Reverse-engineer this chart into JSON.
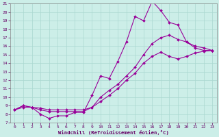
{
  "xlabel": "Windchill (Refroidissement éolien,°C)",
  "xlim": [
    -0.5,
    23.5
  ],
  "ylim": [
    7,
    21
  ],
  "xticks": [
    0,
    1,
    2,
    3,
    4,
    5,
    6,
    7,
    8,
    9,
    10,
    11,
    12,
    13,
    14,
    15,
    16,
    17,
    18,
    19,
    20,
    21,
    22,
    23
  ],
  "yticks": [
    7,
    8,
    9,
    10,
    11,
    12,
    13,
    14,
    15,
    16,
    17,
    18,
    19,
    20,
    21
  ],
  "bg_color": "#cceee8",
  "grid_color": "#aad8d0",
  "line_color": "#990099",
  "line1_x": [
    0,
    1,
    2,
    3,
    4,
    5,
    6,
    7,
    8,
    9,
    10,
    11,
    12,
    13,
    14,
    15,
    16,
    17,
    18,
    19,
    20,
    21,
    22,
    23
  ],
  "line1_y": [
    8.5,
    9.0,
    8.8,
    8.0,
    7.5,
    7.8,
    7.8,
    8.2,
    8.2,
    10.2,
    12.5,
    12.2,
    14.2,
    16.5,
    19.5,
    19.0,
    21.3,
    20.2,
    18.8,
    18.5,
    16.5,
    16.0,
    15.8,
    15.5
  ],
  "line2_x": [
    0,
    1,
    2,
    3,
    4,
    5,
    6,
    7,
    8,
    9,
    10,
    11,
    12,
    13,
    14,
    15,
    16,
    17,
    18,
    19,
    20,
    21,
    22,
    23
  ],
  "line2_y": [
    8.5,
    9.0,
    8.8,
    8.5,
    8.3,
    8.3,
    8.3,
    8.3,
    8.3,
    8.8,
    10.0,
    10.8,
    11.5,
    12.5,
    13.5,
    15.0,
    16.3,
    17.0,
    17.3,
    16.8,
    16.5,
    15.8,
    15.5,
    15.5
  ],
  "line3_x": [
    0,
    1,
    2,
    3,
    4,
    5,
    6,
    7,
    8,
    9,
    10,
    11,
    12,
    13,
    14,
    15,
    16,
    17,
    18,
    19,
    20,
    21,
    22,
    23
  ],
  "line3_y": [
    8.5,
    8.8,
    8.8,
    8.7,
    8.5,
    8.5,
    8.5,
    8.5,
    8.5,
    8.8,
    9.5,
    10.2,
    11.0,
    12.0,
    12.8,
    14.0,
    14.8,
    15.3,
    14.8,
    14.5,
    14.8,
    15.2,
    15.4,
    15.5
  ]
}
